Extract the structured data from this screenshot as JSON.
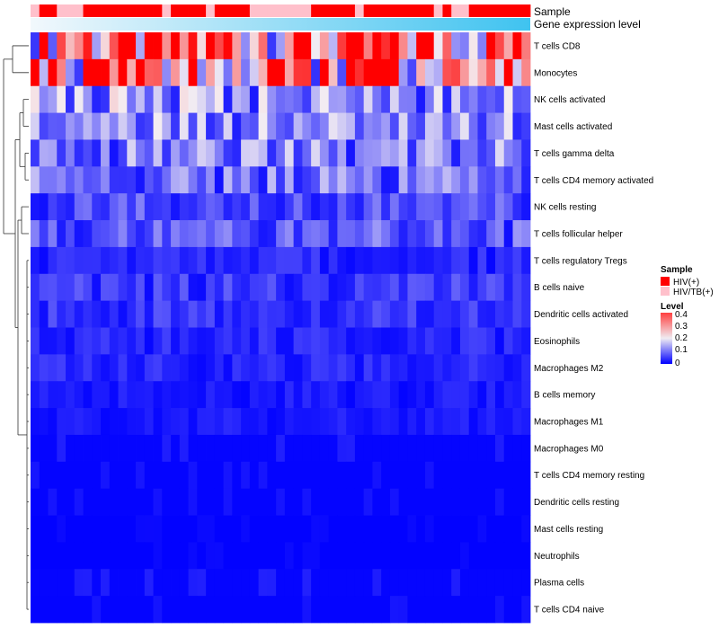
{
  "chart_data": {
    "type": "heatmap",
    "title": "",
    "annotation_labels": {
      "sample": "Sample",
      "expression": "Gene expression level"
    },
    "rows": [
      "T cells CD8",
      "Monocytes",
      "NK cells activated",
      "Mast cells activated",
      "T cells gamma delta",
      "T cells CD4 memory activated",
      "NK cells resting",
      "T cells follicular helper",
      "T cells regulatory  Tregs",
      "B cells naive",
      "Dendritic cells activated",
      "Eosinophils",
      "Macrophages M2",
      "B cells memory",
      "Macrophages M1",
      "Macrophages M0",
      "T cells CD4 memory resting",
      "Dendritic cells resting",
      "Mast cells resting",
      "Neutrophils",
      "Plasma cells",
      "T cells CD4 naive"
    ],
    "row_means": [
      0.31,
      0.26,
      0.12,
      0.11,
      0.1,
      0.09,
      0.06,
      0.07,
      0.03,
      0.045,
      0.04,
      0.03,
      0.03,
      0.02,
      0.02,
      0.015,
      0.01,
      0.01,
      0.005,
      0.005,
      0.015,
      0.01
    ],
    "sample_groups": [
      "2",
      "1",
      "1",
      "2",
      "2",
      "2",
      "1",
      "1",
      "1",
      "1",
      "1",
      "1",
      "1",
      "1",
      "1",
      "2",
      "1",
      "1",
      "1",
      "1",
      "2",
      "1",
      "1",
      "1",
      "1",
      "2",
      "2",
      "2",
      "2",
      "2",
      "2",
      "2",
      "1",
      "1",
      "1",
      "1",
      "1",
      "2",
      "1",
      "1",
      "1",
      "1",
      "1",
      "1",
      "1",
      "1",
      "2",
      "1",
      "2",
      "2",
      "1",
      "1",
      "1",
      "1",
      "1",
      "1",
      "1"
    ],
    "color_scale": {
      "min": 0,
      "max": 0.4,
      "stops": [
        {
          "value": 0,
          "color": "#0000ff"
        },
        {
          "value": 0.2,
          "color": "#f4eef2"
        },
        {
          "value": 0.4,
          "color": "#ff0000"
        }
      ]
    },
    "legend": {
      "position": "right",
      "sample_title": "Sample",
      "sample_entries": [
        {
          "label": "HIV(+)",
          "color": "#ff0000"
        },
        {
          "label": "HIV/TB(+)",
          "color": "#ffc0cb"
        }
      ],
      "level_title": "Level",
      "level_ticks": [
        "0.4",
        "0.3",
        "0.2",
        "0.1",
        "0"
      ]
    }
  }
}
